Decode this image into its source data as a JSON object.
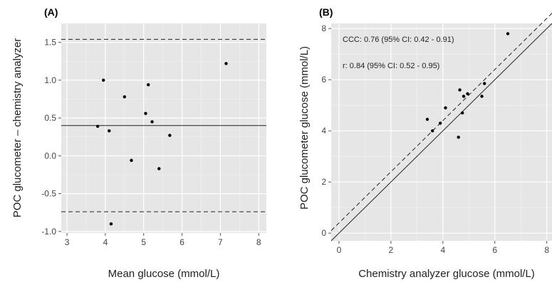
{
  "chart_data": [
    {
      "type": "scatter",
      "panel_label": "(A)",
      "title": "",
      "xlabel": "Mean glucose (mmol/L)",
      "ylabel": "POC glucometer – chemistry analyzer",
      "xlim": [
        2.85,
        8.2
      ],
      "ylim": [
        -1.02,
        1.75
      ],
      "xticks": [
        3,
        4,
        5,
        6,
        7,
        8
      ],
      "xtick_labels": [
        "3",
        "4",
        "5",
        "6",
        "7",
        "8"
      ],
      "yticks": [
        -1.0,
        -0.5,
        0.0,
        0.5,
        1.0,
        1.5
      ],
      "ytick_labels": [
        "-1.0",
        "-0.5",
        "0.0",
        "0.5",
        "1.0",
        "1.5"
      ],
      "grid": true,
      "points": [
        {
          "x": 3.8,
          "y": 0.39
        },
        {
          "x": 3.95,
          "y": 1.0
        },
        {
          "x": 4.1,
          "y": 0.33
        },
        {
          "x": 4.15,
          "y": -0.9
        },
        {
          "x": 4.5,
          "y": 0.78
        },
        {
          "x": 4.68,
          "y": -0.06
        },
        {
          "x": 5.05,
          "y": 0.56
        },
        {
          "x": 5.12,
          "y": 0.94
        },
        {
          "x": 5.22,
          "y": 0.45
        },
        {
          "x": 5.4,
          "y": -0.17
        },
        {
          "x": 5.68,
          "y": 0.27
        },
        {
          "x": 7.15,
          "y": 1.22
        }
      ],
      "reference_lines": [
        {
          "kind": "horizontal",
          "y": 0.4,
          "style": "solid"
        },
        {
          "kind": "horizontal",
          "y": 1.54,
          "style": "dashed"
        },
        {
          "kind": "horizontal",
          "y": -0.74,
          "style": "dashed"
        }
      ]
    },
    {
      "type": "scatter",
      "panel_label": "(B)",
      "title": "",
      "xlabel": "Chemistry analyzer glucose (mmol/L)",
      "ylabel": "POC glucometer glucose (mmol/L)",
      "xlim": [
        -0.3,
        8.2
      ],
      "ylim": [
        -0.3,
        8.2
      ],
      "xticks": [
        0,
        2,
        4,
        6,
        8
      ],
      "xtick_labels": [
        "0",
        "2",
        "4",
        "6",
        "8"
      ],
      "yticks": [
        0,
        2,
        4,
        6,
        8
      ],
      "ytick_labels": [
        "0",
        "2",
        "4",
        "6",
        "8"
      ],
      "grid": true,
      "annotations": [
        "CCC: 0.76 (95% CI: 0.42 - 0.91)",
        "r: 0.84 (95% CI: 0.52 - 0.95)"
      ],
      "points": [
        {
          "x": 3.4,
          "y": 4.45
        },
        {
          "x": 3.6,
          "y": 4.0
        },
        {
          "x": 3.9,
          "y": 4.3
        },
        {
          "x": 4.1,
          "y": 4.9
        },
        {
          "x": 4.6,
          "y": 3.75
        },
        {
          "x": 4.65,
          "y": 5.6
        },
        {
          "x": 4.75,
          "y": 4.7
        },
        {
          "x": 4.8,
          "y": 5.35
        },
        {
          "x": 4.95,
          "y": 5.45
        },
        {
          "x": 5.5,
          "y": 5.35
        },
        {
          "x": 5.6,
          "y": 5.85
        },
        {
          "x": 6.5,
          "y": 7.8
        }
      ],
      "reference_lines": [
        {
          "kind": "identity",
          "slope": 1,
          "intercept": 0,
          "style": "solid"
        },
        {
          "kind": "offset",
          "slope": 1,
          "intercept": 0.4,
          "style": "dashed"
        }
      ]
    }
  ]
}
